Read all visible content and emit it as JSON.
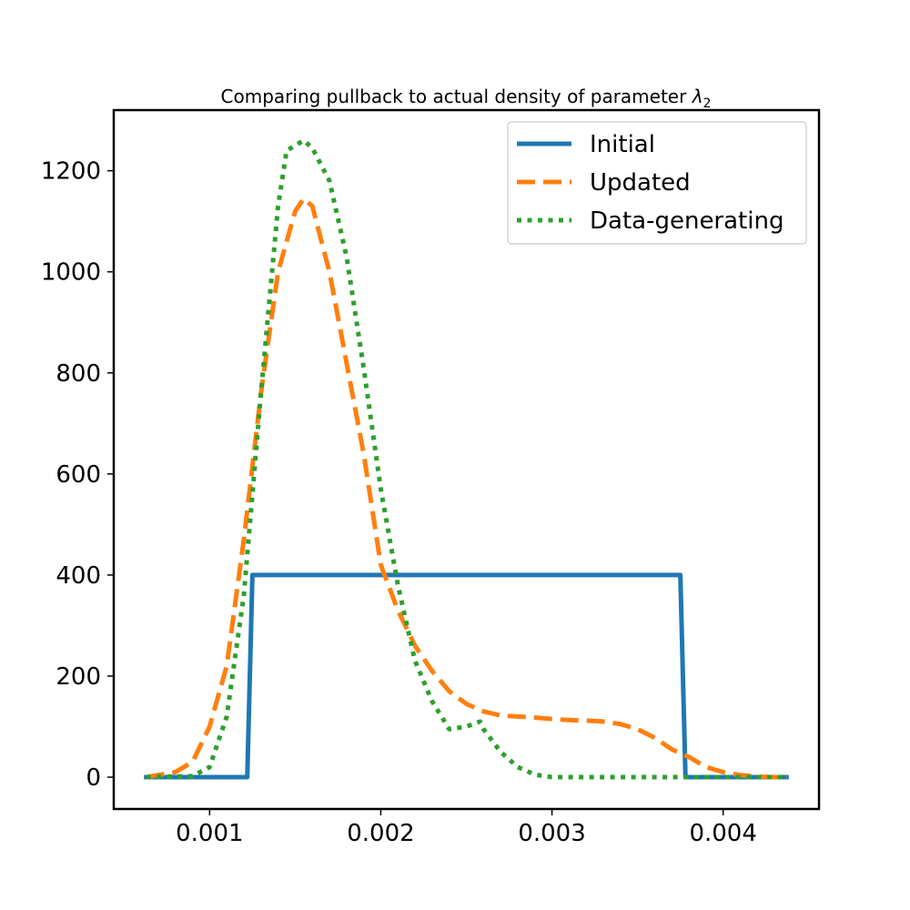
{
  "chart_data": {
    "type": "line",
    "title": "Comparing pullback to actual density of parameter",
    "title_math_symbol": "λ",
    "title_math_subscript": "2",
    "xlabel": "",
    "ylabel": "",
    "xlim": [
      0.00044,
      0.00456
    ],
    "ylim": [
      -63,
      1320
    ],
    "xticks": [
      0.001,
      0.002,
      0.003,
      0.004
    ],
    "xtick_labels": [
      "0.001",
      "0.002",
      "0.003",
      "0.004"
    ],
    "yticks": [
      0,
      200,
      400,
      600,
      800,
      1000,
      1200
    ],
    "ytick_labels": [
      "0",
      "200",
      "400",
      "600",
      "800",
      "1000",
      "1200"
    ],
    "grid": false,
    "legend_position": "top-right",
    "series": [
      {
        "name": "Initial",
        "color": "#1f77b4",
        "style": "solid",
        "x": [
          0.00063,
          0.00122,
          0.00125,
          0.00375,
          0.00378,
          0.00437
        ],
        "y": [
          0,
          0,
          400,
          400,
          0,
          0
        ]
      },
      {
        "name": "Updated",
        "color": "#ff7f0e",
        "style": "dashed",
        "x": [
          0.00063,
          0.0008,
          0.0009,
          0.001,
          0.0011,
          0.0012,
          0.0013,
          0.0014,
          0.0015,
          0.00155,
          0.0016,
          0.0017,
          0.0018,
          0.0019,
          0.002,
          0.0021,
          0.0022,
          0.0023,
          0.0024,
          0.0025,
          0.0026,
          0.0027,
          0.0028,
          0.0029,
          0.003,
          0.0031,
          0.0032,
          0.0033,
          0.0034,
          0.0035,
          0.0036,
          0.0037,
          0.0038,
          0.0039,
          0.004,
          0.0041,
          0.0042,
          0.0043,
          0.00437
        ],
        "y": [
          0,
          10,
          30,
          100,
          220,
          470,
          760,
          1000,
          1120,
          1145,
          1130,
          1000,
          820,
          640,
          420,
          330,
          260,
          210,
          170,
          145,
          130,
          122,
          120,
          118,
          115,
          113,
          112,
          110,
          105,
          95,
          78,
          55,
          40,
          20,
          10,
          4,
          1,
          0,
          0
        ]
      },
      {
        "name": "Data-generating",
        "color": "#2ca02c",
        "style": "dotted",
        "x": [
          0.00063,
          0.0009,
          0.001,
          0.0011,
          0.0012,
          0.0013,
          0.0014,
          0.00145,
          0.00155,
          0.0016,
          0.0017,
          0.0018,
          0.0019,
          0.002,
          0.0021,
          0.0022,
          0.0023,
          0.0024,
          0.0025,
          0.00258,
          0.0026,
          0.0027,
          0.0028,
          0.0029,
          0.003,
          0.0032,
          0.0035,
          0.004,
          0.00437
        ],
        "y": [
          0,
          2,
          20,
          120,
          360,
          760,
          1130,
          1240,
          1260,
          1245,
          1180,
          1030,
          810,
          570,
          380,
          230,
          150,
          95,
          100,
          110,
          95,
          50,
          20,
          5,
          0,
          0,
          0,
          0,
          0
        ]
      }
    ]
  }
}
